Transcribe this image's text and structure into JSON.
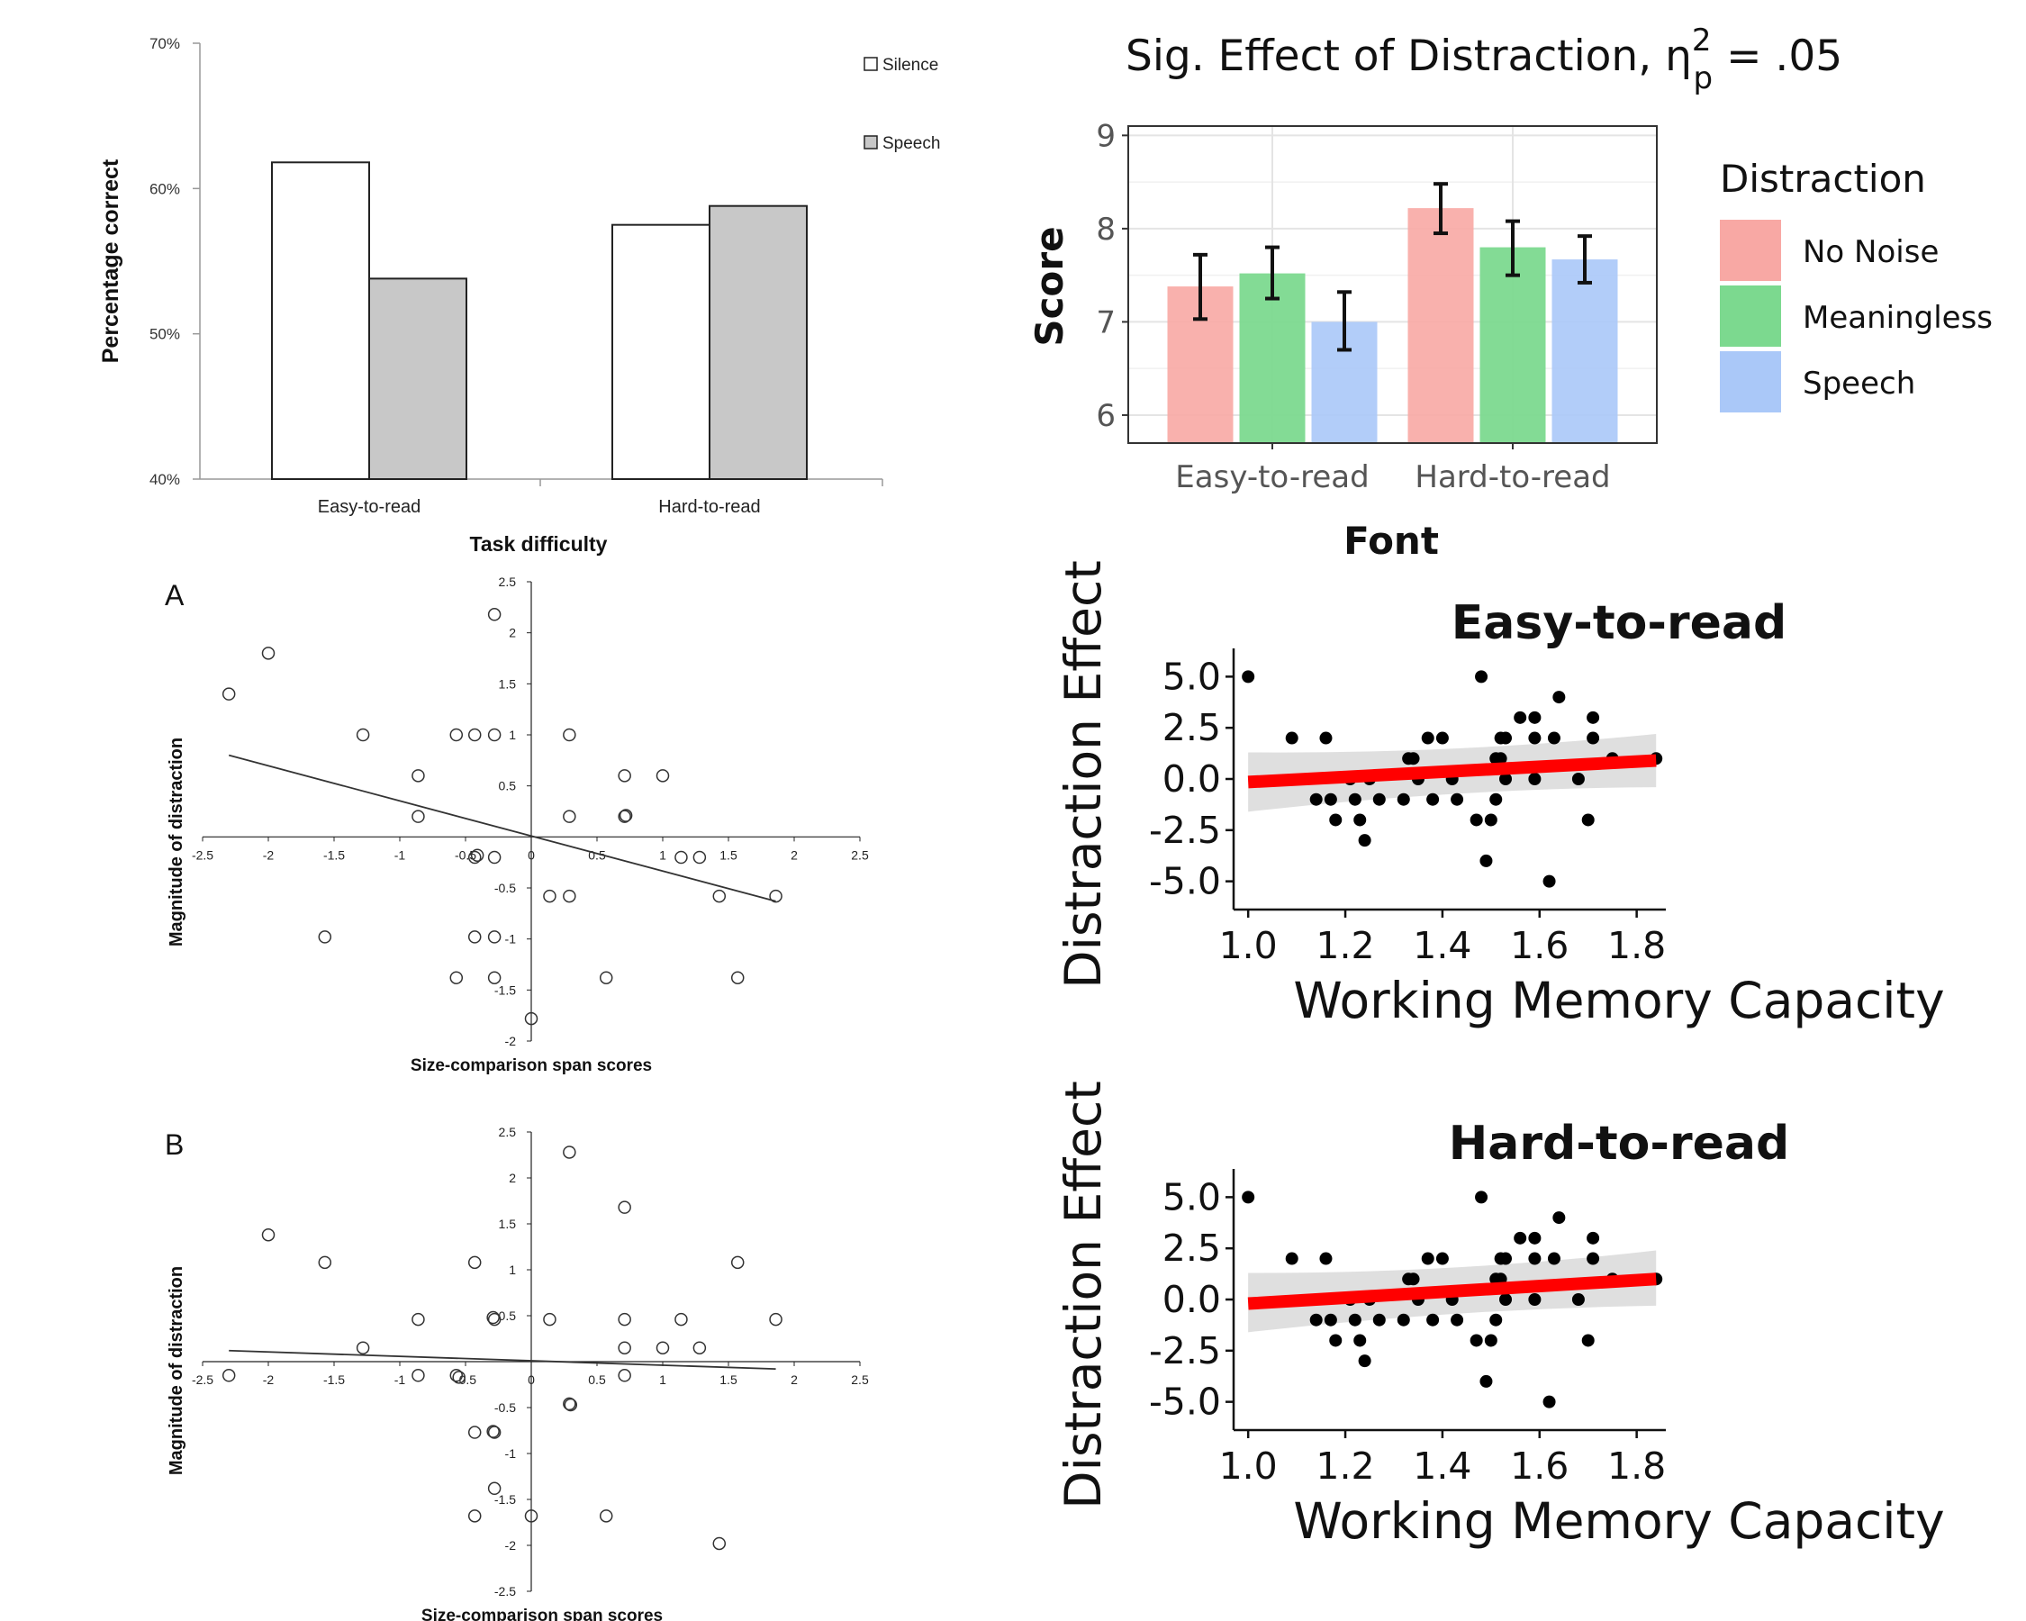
{
  "chart_data": [
    {
      "id": "panel-top-left",
      "type": "bar",
      "xlabel": "Task difficulty",
      "ylabel": "Percentage correct",
      "ylim": [
        40,
        70
      ],
      "yticks": [
        "40%",
        "50%",
        "60%",
        "70%"
      ],
      "categories": [
        "Easy-to-read",
        "Hard-to-read"
      ],
      "series": [
        {
          "name": "Silence",
          "color": "#ffffff",
          "values": [
            61.8,
            57.5
          ]
        },
        {
          "name": "Speech",
          "color": "#c8c8c8",
          "values": [
            53.8,
            58.8
          ]
        }
      ],
      "legend": "top-right",
      "grid": false
    },
    {
      "id": "panel-top-right",
      "type": "bar",
      "title": "Sig. Effect of Distraction, η",
      "title_sup": "2",
      "title_sub": "p",
      "title_tail": " = .05",
      "xlabel": "Font",
      "ylabel": "Score",
      "ylim": [
        5.7,
        9.1
      ],
      "yticks": [
        "6",
        "7",
        "8",
        "9"
      ],
      "categories": [
        "Easy-to-read",
        "Hard-to-read"
      ],
      "legend_title": "Distraction",
      "series": [
        {
          "name": "No Noise",
          "color": "#f8a8a4",
          "values": [
            7.38,
            8.22
          ],
          "err_low": [
            7.03,
            7.95
          ],
          "err_high": [
            7.72,
            8.48
          ]
        },
        {
          "name": "Meaningless",
          "color": "#7cd98f",
          "values": [
            7.52,
            7.8
          ],
          "err_low": [
            7.25,
            7.5
          ],
          "err_high": [
            7.8,
            8.08
          ]
        },
        {
          "name": "Speech",
          "color": "#aac8f8",
          "values": [
            7.0,
            7.67
          ],
          "err_low": [
            6.7,
            7.42
          ],
          "err_high": [
            7.32,
            7.92
          ]
        }
      ],
      "legend": "right",
      "grid": true
    },
    {
      "id": "panel-A",
      "type": "scatter",
      "panel_label": "A",
      "xlabel": "Size-comparison span scores",
      "ylabel": "Magnitude of distraction",
      "xlim": [
        -2.5,
        2.5
      ],
      "ylim": [
        -2,
        2.5
      ],
      "xticks": [
        "-2.5",
        "-2",
        "-1.5",
        "-1",
        "-0.5",
        "0",
        "0.5",
        "1",
        "1.5",
        "2",
        "2.5"
      ],
      "yticks": [
        "2.5",
        "2",
        "1.5",
        "1",
        "0.5",
        "-0.5",
        "-1",
        "-1.5",
        "-2"
      ],
      "points": [
        [
          -0.28,
          2.18
        ],
        [
          -2.0,
          1.8
        ],
        [
          -2.3,
          1.4
        ],
        [
          -1.28,
          1.0
        ],
        [
          -0.57,
          1.0
        ],
        [
          -0.43,
          1.0
        ],
        [
          -0.28,
          1.0
        ],
        [
          0.29,
          1.0
        ],
        [
          -0.86,
          0.6
        ],
        [
          0.71,
          0.6
        ],
        [
          1.0,
          0.6
        ],
        [
          -0.86,
          0.2
        ],
        [
          0.29,
          0.2
        ],
        [
          0.71,
          0.2
        ],
        [
          0.72,
          0.21
        ],
        [
          -0.43,
          -0.2
        ],
        [
          -0.41,
          -0.18
        ],
        [
          -0.28,
          -0.2
        ],
        [
          1.14,
          -0.2
        ],
        [
          1.28,
          -0.2
        ],
        [
          0.14,
          -0.58
        ],
        [
          0.29,
          -0.58
        ],
        [
          1.43,
          -0.58
        ],
        [
          1.86,
          -0.58
        ],
        [
          -1.57,
          -0.98
        ],
        [
          -0.43,
          -0.98
        ],
        [
          -0.28,
          -0.98
        ],
        [
          -0.57,
          -1.38
        ],
        [
          -0.28,
          -1.38
        ],
        [
          0.57,
          -1.38
        ],
        [
          1.57,
          -1.38
        ],
        [
          0.0,
          -1.78
        ]
      ],
      "fit": {
        "x": [
          -2.3,
          1.86
        ],
        "y": [
          0.8,
          -0.63
        ]
      }
    },
    {
      "id": "panel-B",
      "type": "scatter",
      "panel_label": "B",
      "xlabel": "Size-comparison span scores",
      "ylabel": "Magnitude of distraction",
      "xlim": [
        -2.5,
        2.5
      ],
      "ylim": [
        -2.5,
        2.5
      ],
      "xticks": [
        "-2.5",
        "-2",
        "-1.5",
        "-1",
        "-0.5",
        "0",
        "0.5",
        "1",
        "1.5",
        "2",
        "2.5"
      ],
      "yticks": [
        "2.5",
        "2",
        "1.5",
        "1",
        "0.5",
        "-0.5",
        "-1",
        "-1.5",
        "-2",
        "-2.5"
      ],
      "points": [
        [
          0.29,
          2.28
        ],
        [
          0.71,
          1.68
        ],
        [
          -2.0,
          1.38
        ],
        [
          -1.57,
          1.08
        ],
        [
          -0.43,
          1.08
        ],
        [
          1.57,
          1.08
        ],
        [
          -0.86,
          0.46
        ],
        [
          -0.28,
          0.46
        ],
        [
          -0.29,
          0.48
        ],
        [
          0.14,
          0.46
        ],
        [
          0.71,
          0.46
        ],
        [
          1.14,
          0.46
        ],
        [
          1.86,
          0.46
        ],
        [
          -1.28,
          0.15
        ],
        [
          0.71,
          0.15
        ],
        [
          1.0,
          0.15
        ],
        [
          1.28,
          0.15
        ],
        [
          -2.3,
          -0.15
        ],
        [
          -0.86,
          -0.15
        ],
        [
          -0.57,
          -0.15
        ],
        [
          -0.55,
          -0.17
        ],
        [
          0.71,
          -0.15
        ],
        [
          0.29,
          -0.46
        ],
        [
          0.3,
          -0.47
        ],
        [
          -0.43,
          -0.77
        ],
        [
          -0.28,
          -0.77
        ],
        [
          -0.29,
          -0.76
        ],
        [
          -0.28,
          -1.38
        ],
        [
          -0.43,
          -1.68
        ],
        [
          0.0,
          -1.68
        ],
        [
          0.57,
          -1.68
        ],
        [
          1.43,
          -1.98
        ]
      ],
      "fit": {
        "x": [
          -2.3,
          1.86
        ],
        "y": [
          0.12,
          -0.08
        ]
      }
    },
    {
      "id": "panel-easy",
      "type": "scatter",
      "title": "Easy-to-read",
      "xlabel": "Working Memory Capacity",
      "ylabel": "Distraction Effect",
      "xlim": [
        0.97,
        1.86
      ],
      "ylim": [
        -5.5,
        5.5
      ],
      "xticks": [
        "1.0",
        "1.2",
        "1.4",
        "1.6",
        "1.8"
      ],
      "yticks": [
        "5.0",
        "2.5",
        "0.0",
        "-2.5",
        "-5.0"
      ],
      "points": [
        [
          1.0,
          5
        ],
        [
          1.09,
          2
        ],
        [
          1.14,
          -1
        ],
        [
          1.16,
          2
        ],
        [
          1.17,
          -1
        ],
        [
          1.18,
          -2
        ],
        [
          1.21,
          0
        ],
        [
          1.22,
          -1
        ],
        [
          1.23,
          -2
        ],
        [
          1.24,
          -3
        ],
        [
          1.25,
          0
        ],
        [
          1.27,
          -1
        ],
        [
          1.32,
          -1
        ],
        [
          1.33,
          1
        ],
        [
          1.34,
          1
        ],
        [
          1.35,
          0
        ],
        [
          1.37,
          2
        ],
        [
          1.38,
          -1
        ],
        [
          1.4,
          2
        ],
        [
          1.42,
          0
        ],
        [
          1.43,
          -1
        ],
        [
          1.47,
          -2
        ],
        [
          1.48,
          5
        ],
        [
          1.49,
          -4
        ],
        [
          1.5,
          -2
        ],
        [
          1.51,
          -1
        ],
        [
          1.51,
          1
        ],
        [
          1.52,
          2
        ],
        [
          1.52,
          1
        ],
        [
          1.53,
          0
        ],
        [
          1.53,
          2
        ],
        [
          1.56,
          3
        ],
        [
          1.59,
          3
        ],
        [
          1.59,
          2
        ],
        [
          1.59,
          0
        ],
        [
          1.62,
          -5
        ],
        [
          1.63,
          2
        ],
        [
          1.64,
          4
        ],
        [
          1.68,
          0
        ],
        [
          1.7,
          -2
        ],
        [
          1.71,
          3
        ],
        [
          1.71,
          2
        ],
        [
          1.75,
          1
        ],
        [
          1.84,
          1
        ]
      ],
      "fit": {
        "x": [
          1.0,
          1.84
        ],
        "y": [
          -0.15,
          0.9
        ]
      },
      "band": {
        "x": [
          1.0,
          1.84
        ],
        "lower": [
          -1.6,
          -0.4
        ],
        "upper": [
          1.3,
          2.2
        ],
        "mid_x": 1.42,
        "mid_lower": -0.2,
        "mid_upper": 0.95
      }
    },
    {
      "id": "panel-hard",
      "type": "scatter",
      "title": "Hard-to-read",
      "xlabel": "Working Memory Capacity",
      "ylabel": "Distraction Effect",
      "xlim": [
        0.97,
        1.86
      ],
      "ylim": [
        -5.5,
        5.5
      ],
      "xticks": [
        "1.0",
        "1.2",
        "1.4",
        "1.6",
        "1.8"
      ],
      "yticks": [
        "5.0",
        "2.5",
        "0.0",
        "-2.5",
        "-5.0"
      ],
      "points": [
        [
          1.0,
          5
        ],
        [
          1.09,
          2
        ],
        [
          1.14,
          -1
        ],
        [
          1.16,
          2
        ],
        [
          1.17,
          -1
        ],
        [
          1.18,
          -2
        ],
        [
          1.21,
          0
        ],
        [
          1.22,
          -1
        ],
        [
          1.23,
          -2
        ],
        [
          1.24,
          -3
        ],
        [
          1.25,
          0
        ],
        [
          1.27,
          -1
        ],
        [
          1.32,
          -1
        ],
        [
          1.33,
          1
        ],
        [
          1.34,
          1
        ],
        [
          1.35,
          0
        ],
        [
          1.37,
          2
        ],
        [
          1.38,
          -1
        ],
        [
          1.4,
          2
        ],
        [
          1.42,
          0
        ],
        [
          1.43,
          -1
        ],
        [
          1.47,
          -2
        ],
        [
          1.48,
          5
        ],
        [
          1.49,
          -4
        ],
        [
          1.5,
          -2
        ],
        [
          1.51,
          -1
        ],
        [
          1.51,
          1
        ],
        [
          1.52,
          2
        ],
        [
          1.52,
          1
        ],
        [
          1.53,
          0
        ],
        [
          1.53,
          2
        ],
        [
          1.56,
          3
        ],
        [
          1.59,
          3
        ],
        [
          1.59,
          2
        ],
        [
          1.59,
          0
        ],
        [
          1.62,
          -5
        ],
        [
          1.63,
          2
        ],
        [
          1.64,
          4
        ],
        [
          1.68,
          0
        ],
        [
          1.7,
          -2
        ],
        [
          1.71,
          3
        ],
        [
          1.71,
          2
        ],
        [
          1.75,
          1
        ],
        [
          1.84,
          1
        ]
      ],
      "fit": {
        "x": [
          1.0,
          1.84
        ],
        "y": [
          -0.2,
          1.0
        ]
      },
      "band": {
        "x": [
          1.0,
          1.84
        ],
        "lower": [
          -1.6,
          -0.3
        ],
        "upper": [
          1.3,
          2.4
        ],
        "mid_x": 1.42,
        "mid_lower": -0.2,
        "mid_upper": 1.0
      }
    }
  ]
}
